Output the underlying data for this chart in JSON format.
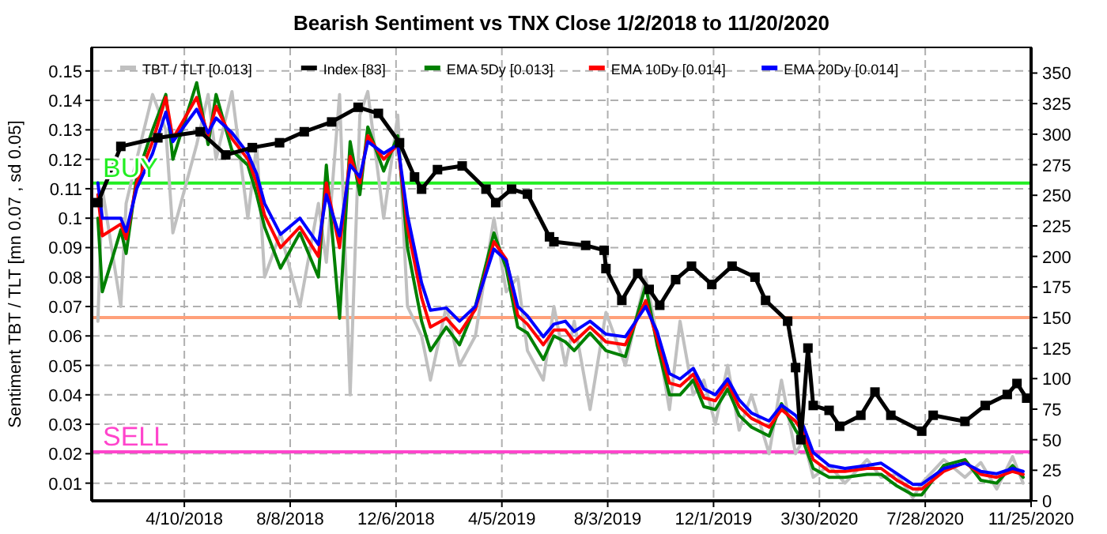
{
  "chart_data": {
    "type": "line",
    "title": "Bearish Sentiment vs TNX Close 1/2/2018 to 11/20/2020",
    "ylabel": "Sentiment TBT / TLT [mn 0.07 , sd 0.05]",
    "x": [
      "2018-01-02",
      "2018-01-07",
      "2018-01-28",
      "2018-02-03",
      "2018-02-15",
      "2018-03-05",
      "2018-03-20",
      "2018-03-28",
      "2018-04-24",
      "2018-05-07",
      "2018-05-16",
      "2018-06-03",
      "2018-06-21",
      "2018-07-01",
      "2018-07-10",
      "2018-07-28",
      "2018-08-19",
      "2018-09-09",
      "2018-09-18",
      "2018-10-03",
      "2018-10-15",
      "2018-10-26",
      "2018-11-04",
      "2018-11-22",
      "2018-12-08",
      "2018-12-19",
      "2019-01-04",
      "2019-01-14",
      "2019-02-01",
      "2019-02-16",
      "2019-03-06",
      "2019-03-27",
      "2019-04-10",
      "2019-04-23",
      "2019-05-04",
      "2019-05-22",
      "2019-06-03",
      "2019-06-16",
      "2019-06-26",
      "2019-07-14",
      "2019-08-01",
      "2019-08-23",
      "2019-09-15",
      "2019-09-28",
      "2019-10-12",
      "2019-10-24",
      "2019-11-08",
      "2019-11-20",
      "2019-12-03",
      "2019-12-17",
      "2019-12-30",
      "2020-01-13",
      "2020-02-02",
      "2020-02-16",
      "2020-03-03",
      "2020-03-12",
      "2020-03-23",
      "2020-04-10",
      "2020-04-28",
      "2020-05-23",
      "2020-06-08",
      "2020-06-26",
      "2020-07-14",
      "2020-07-24",
      "2020-08-18",
      "2020-09-11",
      "2020-09-29",
      "2020-10-17",
      "2020-11-04",
      "2020-11-16"
    ],
    "series": [
      {
        "name": "TBT / TLT [0.013]",
        "color": "#c0c0c0",
        "values": [
          0.065,
          0.11,
          0.07,
          0.105,
          0.12,
          0.142,
          0.13,
          0.095,
          0.125,
          0.142,
          0.12,
          0.143,
          0.1,
          0.125,
          0.08,
          0.095,
          0.07,
          0.105,
          0.085,
          0.142,
          0.04,
          0.135,
          0.143,
          0.1,
          0.135,
          0.07,
          0.06,
          0.045,
          0.07,
          0.05,
          0.06,
          0.1,
          0.075,
          0.08,
          0.055,
          0.045,
          0.07,
          0.05,
          0.065,
          0.035,
          0.068,
          0.05,
          0.08,
          0.06,
          0.035,
          0.065,
          0.04,
          0.045,
          0.03,
          0.05,
          0.028,
          0.04,
          0.02,
          0.045,
          0.02,
          0.025,
          0.012,
          0.016,
          0.01,
          0.018,
          0.012,
          0.013,
          0.005,
          0.01,
          0.018,
          0.012,
          0.017,
          0.008,
          0.019,
          0.01
        ]
      },
      {
        "name": "Index [83]",
        "color": "#000000",
        "axis": "y2",
        "marker": "square",
        "x": [
          "2018-01-02",
          "2018-01-28",
          "2018-03-11",
          "2018-04-28",
          "2018-05-27",
          "2018-06-26",
          "2018-07-27",
          "2018-08-24",
          "2018-09-24",
          "2018-10-24",
          "2018-11-16",
          "2018-12-10",
          "2018-12-27",
          "2019-01-04",
          "2019-01-22",
          "2019-02-19",
          "2019-03-18",
          "2019-03-29",
          "2019-04-16",
          "2019-05-04",
          "2019-05-29",
          "2019-06-03",
          "2019-07-09",
          "2019-07-30",
          "2019-08-01",
          "2019-08-19",
          "2019-09-06",
          "2019-09-19",
          "2019-10-01",
          "2019-10-19",
          "2019-11-06",
          "2019-11-29",
          "2019-12-22",
          "2020-01-17",
          "2020-01-29",
          "2020-02-23",
          "2020-03-03",
          "2020-03-09",
          "2020-03-17",
          "2020-03-23",
          "2020-04-10",
          "2020-04-22",
          "2020-05-16",
          "2020-06-01",
          "2020-06-19",
          "2020-07-24",
          "2020-08-06",
          "2020-09-11",
          "2020-10-04",
          "2020-10-29",
          "2020-11-09",
          "2020-11-20"
        ],
        "values": [
          244,
          290,
          297,
          302,
          283,
          289,
          293,
          302,
          310,
          322,
          317,
          293,
          265,
          255,
          271,
          274,
          255,
          244,
          255,
          251,
          216,
          212,
          209,
          205,
          190,
          164,
          186,
          173,
          160,
          181,
          192,
          177,
          192,
          183,
          164,
          147,
          109,
          50,
          125,
          78,
          74,
          61,
          70,
          89,
          70,
          57,
          70,
          65,
          78,
          87,
          96,
          84
        ]
      },
      {
        "name": "EMA 5Dy [0.013]",
        "color": "#008000",
        "values": [
          0.1,
          0.075,
          0.096,
          0.088,
          0.114,
          0.13,
          0.142,
          0.12,
          0.146,
          0.125,
          0.142,
          0.123,
          0.118,
          0.108,
          0.097,
          0.083,
          0.095,
          0.08,
          0.118,
          0.066,
          0.126,
          0.108,
          0.131,
          0.116,
          0.128,
          0.09,
          0.065,
          0.055,
          0.063,
          0.057,
          0.07,
          0.095,
          0.083,
          0.063,
          0.061,
          0.052,
          0.06,
          0.058,
          0.055,
          0.061,
          0.055,
          0.053,
          0.077,
          0.057,
          0.04,
          0.04,
          0.045,
          0.036,
          0.035,
          0.042,
          0.033,
          0.029,
          0.026,
          0.037,
          0.028,
          0.024,
          0.015,
          0.012,
          0.012,
          0.013,
          0.013,
          0.009,
          0.006,
          0.006,
          0.016,
          0.018,
          0.011,
          0.01,
          0.016,
          0.012
        ]
      },
      {
        "name": "EMA 10Dy [0.014]",
        "color": "#ff0000",
        "values": [
          0.108,
          0.094,
          0.098,
          0.093,
          0.112,
          0.126,
          0.141,
          0.127,
          0.141,
          0.128,
          0.138,
          0.127,
          0.12,
          0.112,
          0.101,
          0.09,
          0.097,
          0.087,
          0.112,
          0.09,
          0.121,
          0.112,
          0.128,
          0.12,
          0.125,
          0.097,
          0.073,
          0.063,
          0.066,
          0.061,
          0.069,
          0.092,
          0.086,
          0.067,
          0.064,
          0.057,
          0.062,
          0.062,
          0.058,
          0.063,
          0.058,
          0.057,
          0.072,
          0.059,
          0.044,
          0.043,
          0.047,
          0.039,
          0.038,
          0.044,
          0.036,
          0.032,
          0.029,
          0.035,
          0.031,
          0.027,
          0.018,
          0.014,
          0.014,
          0.015,
          0.015,
          0.011,
          0.008,
          0.008,
          0.014,
          0.017,
          0.013,
          0.012,
          0.014,
          0.013
        ]
      },
      {
        "name": "EMA 20Dy [0.014]",
        "color": "#0000ff",
        "values": [
          0.112,
          0.1,
          0.1,
          0.0955,
          0.11,
          0.122,
          0.136,
          0.126,
          0.137,
          0.129,
          0.134,
          0.129,
          0.122,
          0.115,
          0.105,
          0.0945,
          0.1,
          0.091,
          0.108,
          0.094,
          0.118,
          0.114,
          0.126,
          0.122,
          0.125,
          0.101,
          0.078,
          0.0687,
          0.0695,
          0.065,
          0.07,
          0.0895,
          0.0856,
          0.07,
          0.0668,
          0.0597,
          0.064,
          0.065,
          0.0615,
          0.065,
          0.0606,
          0.0597,
          0.07,
          0.0615,
          0.0472,
          0.0454,
          0.049,
          0.042,
          0.04,
          0.0454,
          0.0383,
          0.0338,
          0.0311,
          0.0365,
          0.033,
          0.0293,
          0.0204,
          0.016,
          0.015,
          0.016,
          0.0168,
          0.0132,
          0.0096,
          0.0096,
          0.015,
          0.0168,
          0.014,
          0.0132,
          0.015,
          0.014
        ]
      }
    ],
    "xlim": [
      "2017-12-26",
      "2020-11-25"
    ],
    "xticks": [
      {
        "value": "2018-04-10",
        "label": "4/10/2018"
      },
      {
        "value": "2018-08-08",
        "label": "8/8/2018"
      },
      {
        "value": "2018-12-06",
        "label": "12/6/2018"
      },
      {
        "value": "2019-04-05",
        "label": "4/5/2019"
      },
      {
        "value": "2019-08-03",
        "label": "8/3/2019"
      },
      {
        "value": "2019-12-01",
        "label": "12/1/2019"
      },
      {
        "value": "2020-03-30",
        "label": "3/30/2020"
      },
      {
        "value": "2020-07-28",
        "label": "7/28/2020"
      },
      {
        "value": "2020-11-25",
        "label": "11/25/2020"
      }
    ],
    "ylim": [
      0.004,
      0.158
    ],
    "yticks": [
      0.01,
      0.02,
      0.03,
      0.04,
      0.05,
      0.06,
      0.07,
      0.08,
      0.09,
      0.1,
      0.11,
      0.12,
      0.13,
      0.14,
      0.15
    ],
    "y2lim": [
      0,
      371
    ],
    "y2ticks": [
      0,
      25,
      50,
      75,
      100,
      125,
      150,
      175,
      200,
      225,
      250,
      275,
      300,
      325,
      350
    ],
    "ref_lines": [
      {
        "axis": "y2",
        "value": 260,
        "label": "BUY",
        "color": "#22ee22"
      },
      {
        "axis": "y2",
        "value": 150,
        "color": "#ffa07a"
      },
      {
        "axis": "y2",
        "value": 40,
        "label": "SELL",
        "color": "#ff44cc"
      }
    ],
    "grid": true,
    "legend": "top",
    "line_style": "solid"
  }
}
